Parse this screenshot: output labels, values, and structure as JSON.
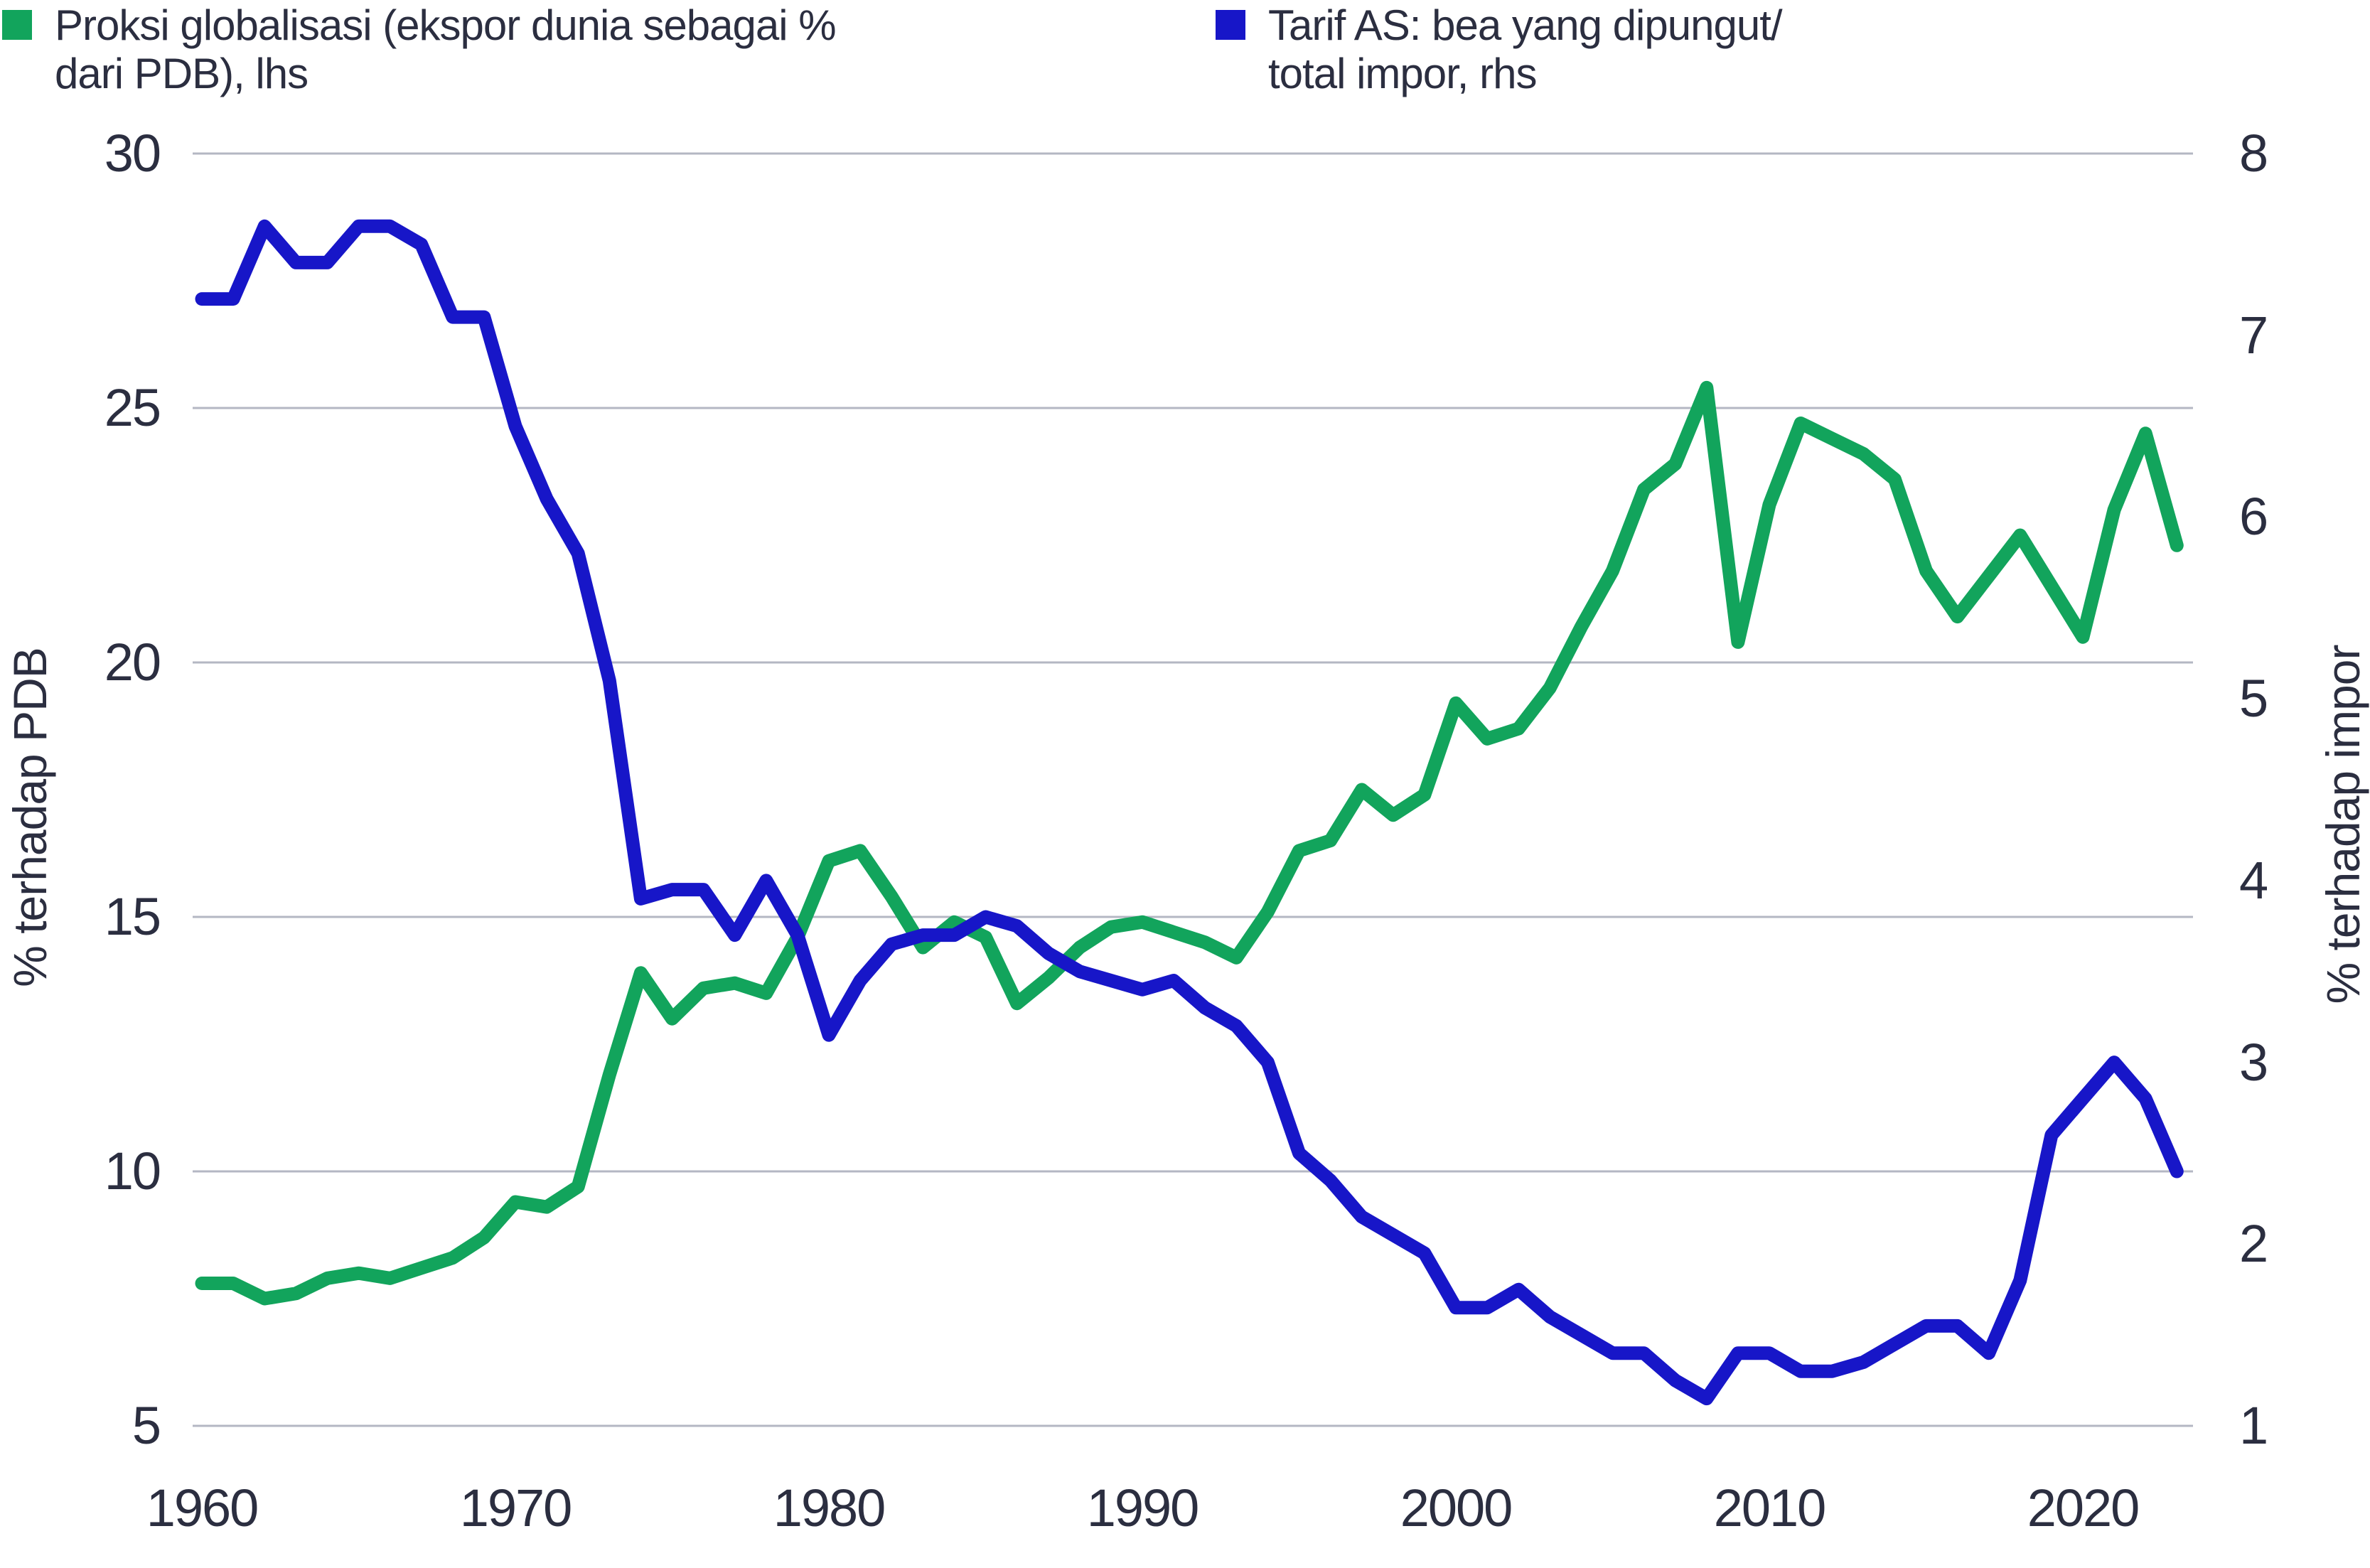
{
  "legend": [
    {
      "label": "Proksi globalisasi (ekspor dunia sebagai %\ndari PDB), lhs",
      "color": "#12a45c"
    },
    {
      "label": "Tarif AS: bea yang dipungut/\ntotal impor, rhs",
      "color": "#1716c8"
    }
  ],
  "colors": {
    "globalization_line": "#12a45c",
    "tariff_line": "#1716c8",
    "gridline": "#b4b7c3",
    "text": "#2b2e40"
  },
  "chart_data": {
    "type": "line",
    "title": "",
    "x": [
      1960,
      1961,
      1962,
      1963,
      1964,
      1965,
      1966,
      1967,
      1968,
      1969,
      1970,
      1971,
      1972,
      1973,
      1974,
      1975,
      1976,
      1977,
      1978,
      1979,
      1980,
      1981,
      1982,
      1983,
      1984,
      1985,
      1986,
      1987,
      1988,
      1989,
      1990,
      1991,
      1992,
      1993,
      1994,
      1995,
      1996,
      1997,
      1998,
      1999,
      2000,
      2001,
      2002,
      2003,
      2004,
      2005,
      2006,
      2007,
      2008,
      2009,
      2010,
      2011,
      2012,
      2013,
      2014,
      2015,
      2016,
      2017,
      2018,
      2019,
      2020,
      2021,
      2022,
      2023
    ],
    "series": [
      {
        "name": "Proksi globalisasi (ekspor dunia sebagai % dari PDB), lhs",
        "axis": "left",
        "color": "#12a45c",
        "values": [
          7.8,
          7.8,
          7.5,
          7.6,
          7.9,
          8.0,
          7.9,
          8.1,
          8.3,
          8.7,
          9.4,
          9.3,
          9.7,
          11.9,
          13.9,
          13.0,
          13.6,
          13.7,
          13.5,
          14.6,
          16.1,
          16.3,
          15.4,
          14.4,
          14.9,
          14.6,
          13.3,
          13.8,
          14.4,
          14.8,
          14.9,
          14.7,
          14.5,
          14.2,
          15.1,
          16.3,
          16.5,
          17.5,
          17.0,
          17.4,
          19.2,
          18.5,
          18.7,
          19.5,
          20.7,
          21.8,
          23.4,
          23.9,
          25.4,
          20.4,
          23.1,
          24.7,
          24.4,
          24.1,
          23.6,
          21.8,
          20.9,
          21.7,
          22.5,
          21.5,
          20.5,
          23.0,
          24.5,
          22.3
        ]
      },
      {
        "name": "Tarif AS: bea yang dipungut/total impor, rhs",
        "axis": "right",
        "color": "#1716c8",
        "values": [
          7.2,
          7.2,
          7.6,
          7.4,
          7.4,
          7.6,
          7.6,
          7.5,
          7.1,
          7.1,
          6.5,
          6.1,
          5.8,
          5.1,
          3.9,
          3.95,
          3.95,
          3.7,
          4.0,
          3.7,
          3.15,
          3.45,
          3.65,
          3.7,
          3.7,
          3.8,
          3.75,
          3.6,
          3.5,
          3.45,
          3.4,
          3.45,
          3.3,
          3.2,
          3.0,
          2.5,
          2.35,
          2.15,
          2.05,
          1.95,
          1.65,
          1.65,
          1.75,
          1.6,
          1.5,
          1.4,
          1.4,
          1.25,
          1.15,
          1.4,
          1.4,
          1.3,
          1.3,
          1.35,
          1.45,
          1.55,
          1.55,
          1.4,
          1.8,
          2.6,
          2.8,
          3.0,
          2.8,
          2.4
        ]
      }
    ],
    "axes": {
      "left": {
        "title": "% terhadap PDB",
        "ticks": [
          30,
          25,
          20,
          15,
          10,
          5
        ],
        "min": 5,
        "max": 30
      },
      "right": {
        "title": "% terhadap impor",
        "ticks": [
          8,
          7,
          6,
          5,
          4,
          3,
          2,
          1
        ],
        "min": 1,
        "max": 8
      },
      "x": {
        "ticks": [
          1960,
          1970,
          1980,
          1990,
          2000,
          2010,
          2020
        ],
        "min": 1960,
        "max": 2023
      }
    },
    "grid": "horizontal gridlines at left-axis ticks only",
    "legend_position": "top"
  }
}
